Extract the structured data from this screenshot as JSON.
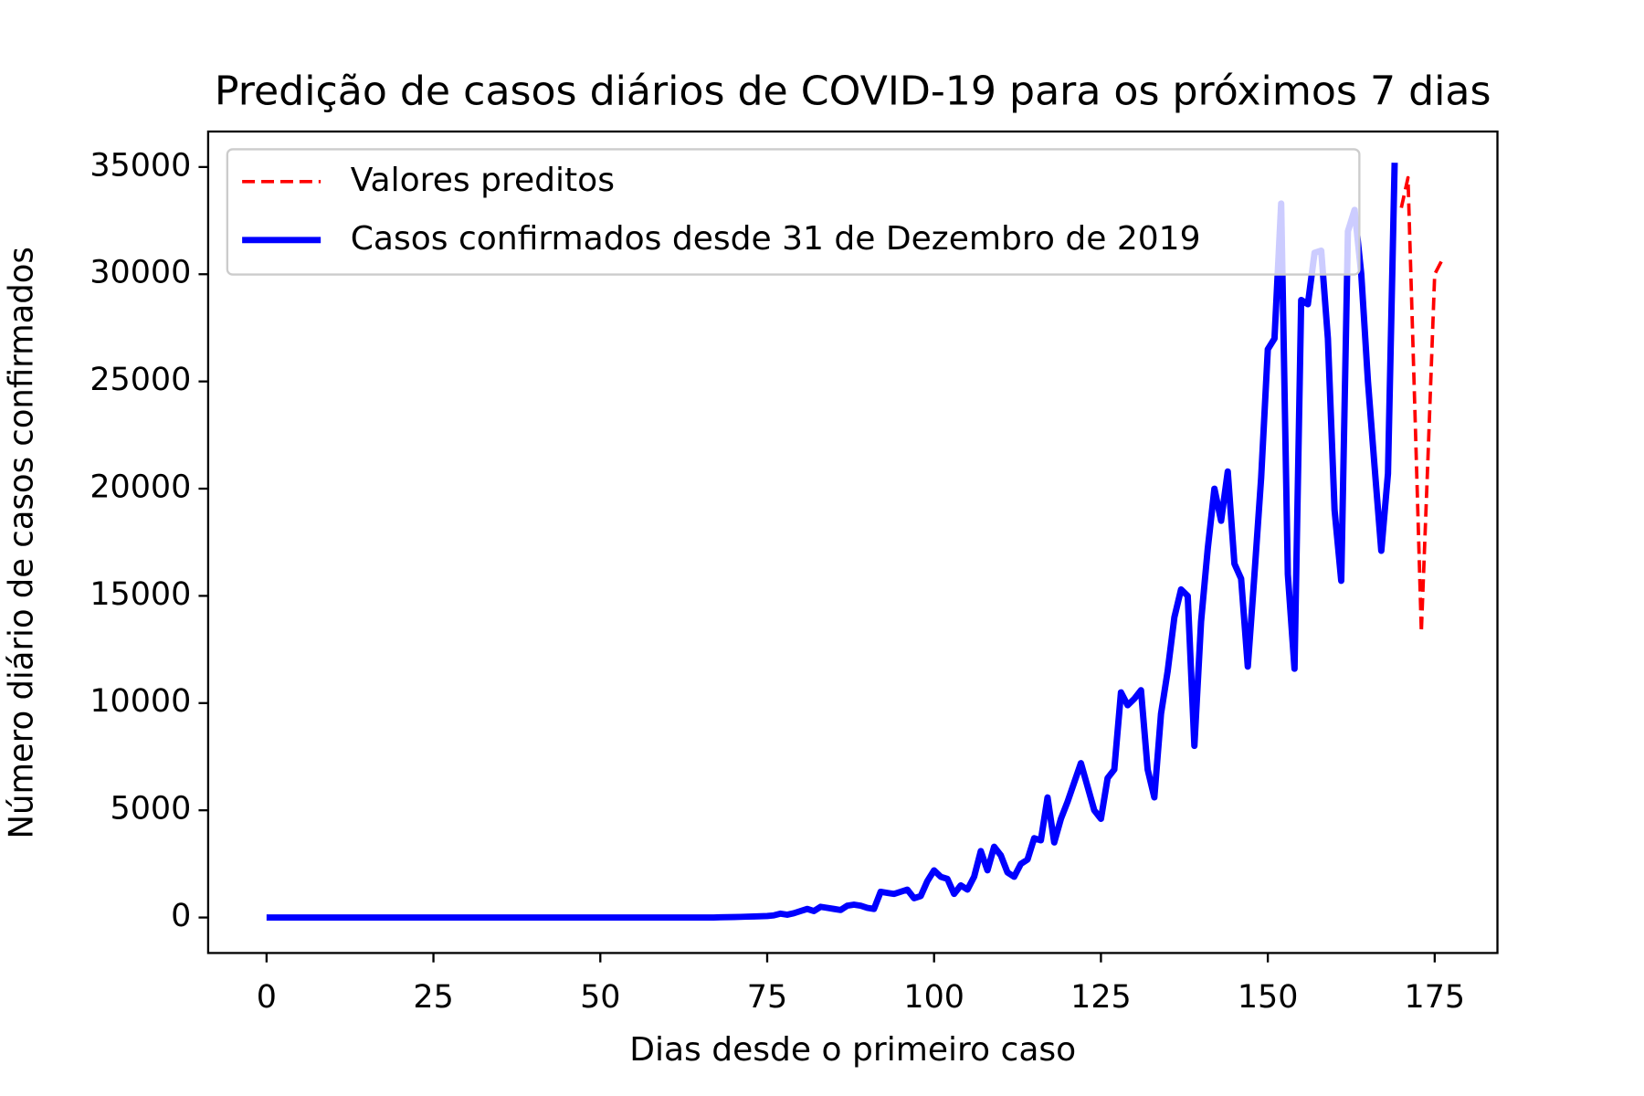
{
  "chart_data": {
    "type": "line",
    "title": "Predição de casos diários de COVID-19 para os próximos 7 dias",
    "x_label": "Dias desde o primeiro caso",
    "y_label": "Número diário de casos confirmados",
    "xlim": [
      -8.75,
      184.4
    ],
    "ylim": [
      -1655,
      36655
    ],
    "xticks": [
      0,
      25,
      50,
      75,
      100,
      125,
      150,
      175
    ],
    "yticks": [
      0,
      5000,
      10000,
      15000,
      20000,
      25000,
      30000,
      35000
    ],
    "grid": false,
    "legend": "upper left",
    "series": [
      {
        "name": "Valores preditos",
        "color": "#ff0000",
        "dashed": true,
        "x": [
          170,
          171,
          172,
          173,
          174,
          175,
          176
        ],
        "values": [
          33100,
          34500,
          24000,
          13300,
          21500,
          30000,
          30600
        ]
      },
      {
        "name": "Casos confirmados desde 31 de Dezembro de 2019",
        "color": "#0000ff",
        "dashed": false,
        "x": [
          0,
          1,
          2,
          3,
          4,
          5,
          6,
          7,
          8,
          9,
          10,
          11,
          12,
          13,
          14,
          15,
          16,
          17,
          18,
          19,
          20,
          21,
          22,
          23,
          24,
          25,
          26,
          27,
          28,
          29,
          30,
          31,
          32,
          33,
          34,
          35,
          36,
          37,
          38,
          39,
          40,
          41,
          42,
          43,
          44,
          45,
          46,
          47,
          48,
          49,
          50,
          51,
          52,
          53,
          54,
          55,
          56,
          57,
          58,
          59,
          60,
          61,
          62,
          63,
          64,
          65,
          66,
          67,
          68,
          69,
          70,
          71,
          72,
          73,
          74,
          75,
          76,
          77,
          78,
          79,
          80,
          81,
          82,
          83,
          84,
          85,
          86,
          87,
          88,
          89,
          90,
          91,
          92,
          93,
          94,
          95,
          96,
          97,
          98,
          99,
          100,
          101,
          102,
          103,
          104,
          105,
          106,
          107,
          108,
          109,
          110,
          111,
          112,
          113,
          114,
          115,
          116,
          117,
          118,
          119,
          120,
          121,
          122,
          123,
          124,
          125,
          126,
          127,
          128,
          129,
          130,
          131,
          132,
          133,
          134,
          135,
          136,
          137,
          138,
          139,
          140,
          141,
          142,
          143,
          144,
          145,
          146,
          147,
          148,
          149,
          150,
          151,
          152,
          153,
          154,
          155,
          156,
          157,
          158,
          159,
          160,
          161,
          162,
          163,
          164,
          165,
          166,
          167,
          168,
          169
        ],
        "values": [
          0,
          0,
          0,
          0,
          0,
          0,
          0,
          0,
          0,
          0,
          0,
          0,
          0,
          0,
          0,
          0,
          0,
          0,
          0,
          0,
          0,
          0,
          0,
          0,
          0,
          0,
          0,
          0,
          0,
          0,
          0,
          0,
          0,
          0,
          0,
          0,
          0,
          0,
          0,
          0,
          0,
          0,
          0,
          0,
          0,
          0,
          0,
          0,
          0,
          0,
          0,
          0,
          0,
          0,
          0,
          0,
          0,
          0,
          0,
          0,
          0,
          0,
          0,
          0,
          0,
          0,
          0,
          0,
          10,
          15,
          20,
          30,
          40,
          50,
          60,
          70,
          100,
          180,
          130,
          200,
          300,
          400,
          300,
          500,
          450,
          400,
          350,
          550,
          600,
          550,
          450,
          400,
          1200,
          1150,
          1100,
          1200,
          1300,
          900,
          1000,
          1700,
          2200,
          1900,
          1800,
          1100,
          1500,
          1300,
          1900,
          3100,
          2200,
          3300,
          2900,
          2100,
          1900,
          2500,
          2700,
          3700,
          3600,
          5600,
          3500,
          4600,
          5400,
          6300,
          7200,
          6100,
          5000,
          4600,
          6500,
          6900,
          10500,
          9900,
          10200,
          10600,
          6900,
          5600,
          9500,
          11500,
          14000,
          15300,
          15000,
          8000,
          13800,
          17200,
          20000,
          18500,
          20800,
          16500,
          15800,
          11700,
          16000,
          20500,
          26500,
          27000,
          33300,
          16000,
          11600,
          28800,
          28600,
          31000,
          31100,
          27000,
          19000,
          15700,
          32000,
          33000,
          30000,
          25000,
          21000,
          17100,
          20700,
          35200
        ]
      }
    ]
  }
}
